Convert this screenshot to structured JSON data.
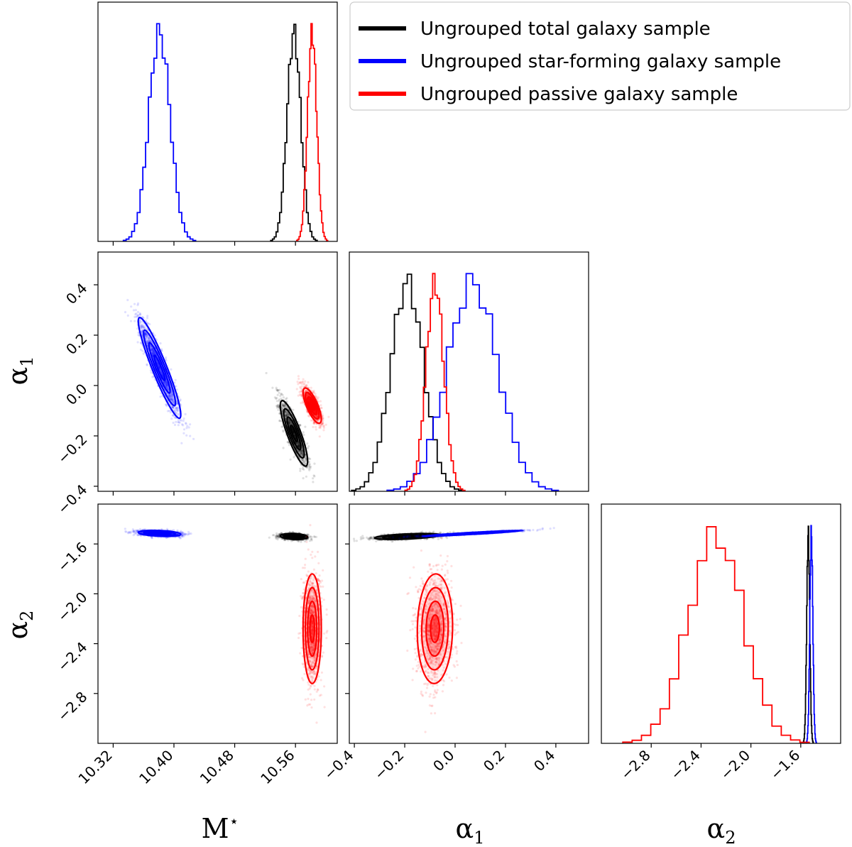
{
  "chart_data": {
    "type": "corner",
    "parameters": [
      {
        "key": "Mstar",
        "label_main": "M",
        "label_sup": "⋆",
        "ticks": [
          10.32,
          10.4,
          10.48,
          10.56
        ],
        "tick_labels": [
          "10.32",
          "10.40",
          "10.48",
          "10.56"
        ],
        "range": [
          10.3,
          10.615
        ]
      },
      {
        "key": "alpha1",
        "label_main": "α",
        "label_sub": "1",
        "ticks": [
          -0.4,
          -0.2,
          0.0,
          0.2,
          0.4
        ],
        "tick_labels": [
          "−0.4",
          "−0.2",
          "0.0",
          "0.2",
          "0.4"
        ],
        "range": [
          -0.42,
          0.53
        ]
      },
      {
        "key": "alpha2",
        "label_main": "α",
        "label_sub": "2",
        "ticks": [
          -2.8,
          -2.4,
          -2.0,
          -1.6
        ],
        "tick_labels": [
          "−2.8",
          "−2.4",
          "−2.0",
          "−1.6"
        ],
        "range": [
          -3.2,
          -1.28
        ]
      }
    ],
    "legend": {
      "placement": "top-right",
      "entries": [
        {
          "label": "Ungrouped total galaxy sample",
          "color": "#000000"
        },
        {
          "label": "Ungrouped star-forming galaxy sample",
          "color": "#0000ff"
        },
        {
          "label": "Ungrouped passive galaxy sample",
          "color": "#ff0000"
        }
      ]
    },
    "series": [
      {
        "color": "#000000",
        "mean": {
          "Mstar": 10.558,
          "alpha1": -0.19,
          "alpha2": -1.54
        },
        "std": {
          "Mstar": 0.009,
          "alpha1": 0.065,
          "alpha2": 0.012
        },
        "corr": {
          "Mstar_alpha1": -0.85,
          "Mstar_alpha2": -0.2,
          "alpha1_alpha2": 0.5
        }
      },
      {
        "color": "#0000ff",
        "mean": {
          "Mstar": 10.381,
          "alpha1": 0.07,
          "alpha2": -1.515
        },
        "std": {
          "Mstar": 0.014,
          "alpha1": 0.1,
          "alpha2": 0.012
        },
        "corr": {
          "Mstar_alpha1": -0.93,
          "Mstar_alpha2": -0.3,
          "alpha1_alpha2": 0.95
        }
      },
      {
        "color": "#ff0000",
        "mean": {
          "Mstar": 10.582,
          "alpha1": -0.08,
          "alpha2": -2.28
        },
        "std": {
          "Mstar": 0.006,
          "alpha1": 0.035,
          "alpha2": 0.22
        },
        "corr": {
          "Mstar_alpha1": -0.75,
          "Mstar_alpha2": 0.0,
          "alpha1_alpha2": 0.05
        }
      }
    ]
  }
}
